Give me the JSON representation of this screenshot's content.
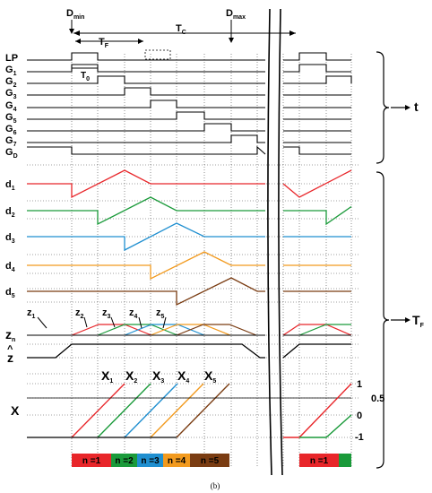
{
  "markers": {
    "d_min": "D",
    "d_min_sub": "min",
    "d_max": "D",
    "d_max_sub": "max",
    "t_c": "T",
    "t_c_sub": "C",
    "t_f": "T",
    "t_f_sub": "F",
    "t_0": "T",
    "t_0_sub": "0"
  },
  "gate_signals": [
    {
      "label": "LP",
      "sub": ""
    },
    {
      "label": "G",
      "sub": "1"
    },
    {
      "label": "G",
      "sub": "2"
    },
    {
      "label": "G",
      "sub": "3"
    },
    {
      "label": "G",
      "sub": "4"
    },
    {
      "label": "G",
      "sub": "5"
    },
    {
      "label": "G",
      "sub": "6"
    },
    {
      "label": "G",
      "sub": "7"
    },
    {
      "label": "G",
      "sub": "D"
    }
  ],
  "duty_signals": [
    {
      "label": "d",
      "sub": "1",
      "color": "#e8262a"
    },
    {
      "label": "d",
      "sub": "2",
      "color": "#1a9a3a"
    },
    {
      "label": "d",
      "sub": "3",
      "color": "#1f8fd0"
    },
    {
      "label": "d",
      "sub": "4",
      "color": "#f29a1e"
    },
    {
      "label": "d",
      "sub": "5",
      "color": "#7a3c12"
    }
  ],
  "z_labels": [
    {
      "label": "z",
      "sub": "1"
    },
    {
      "label": "z",
      "sub": "2"
    },
    {
      "label": "z",
      "sub": "3"
    },
    {
      "label": "z",
      "sub": "4"
    },
    {
      "label": "z",
      "sub": "5"
    }
  ],
  "zn_label": {
    "label": "z",
    "sub": "n"
  },
  "zhat_label": {
    "label": "z",
    "hat": "^"
  },
  "x_labels": [
    {
      "label": "X",
      "sub": "1"
    },
    {
      "label": "X",
      "sub": "2"
    },
    {
      "label": "X",
      "sub": "3"
    },
    {
      "label": "X",
      "sub": "4"
    },
    {
      "label": "X",
      "sub": "5"
    }
  ],
  "x_axis_label": "X",
  "x_levels": {
    "top": "1",
    "mid": "0.5",
    "zero": "0",
    "bottom": "-1"
  },
  "brackets": {
    "time": "t",
    "tf": "T",
    "tf_sub": "F"
  },
  "segments": [
    {
      "label": "n =1",
      "color": "#e8262a"
    },
    {
      "label": "n =2",
      "color": "#1a9a3a"
    },
    {
      "label": "n =3",
      "color": "#1f8fd0"
    },
    {
      "label": "n =4",
      "color": "#f29a1e"
    },
    {
      "label": "n =5",
      "color": "#7a3c12"
    }
  ],
  "segments_right": [
    {
      "label": "n =1",
      "color": "#e8262a"
    },
    {
      "label": "",
      "color": "#1a9a3a"
    }
  ],
  "caption": "(b)",
  "colors": {
    "mid_level": "#e8262a",
    "grid": "#000000"
  }
}
